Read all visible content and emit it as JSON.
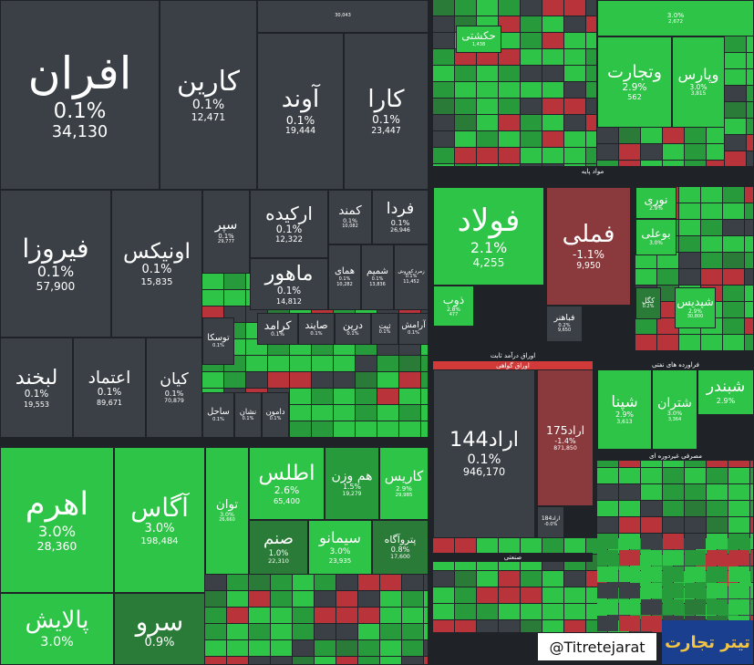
{
  "tiles": [
    {
      "name": "افران",
      "change": "0.1%",
      "value": "34,130",
      "color": "#3b4046"
    },
    {
      "name": "کارین",
      "change": "0.1%",
      "value": "12,471",
      "color": "#3b4046"
    },
    {
      "value": "30,043",
      "color": "#3b4046"
    },
    {
      "name": "آوند",
      "change": "0.1%",
      "value": "19,444",
      "color": "#3b4046"
    },
    {
      "name": "کارا",
      "change": "0.1%",
      "value": "23,447",
      "color": "#3b4046"
    },
    {
      "name": "فیروزا",
      "change": "0.1%",
      "value": "57,900",
      "color": "#3b4046"
    },
    {
      "name": "اونیکس",
      "change": "0.1%",
      "value": "15,835",
      "color": "#3b4046"
    },
    {
      "name": "سپر",
      "change": "0.1%",
      "value": "29,777",
      "color": "#3b4046"
    },
    {
      "name": "ارکیده",
      "change": "0.1%",
      "value": "12,322",
      "color": "#3b4046"
    },
    {
      "name": "کمند",
      "change": "0.1%",
      "value": "10,082",
      "color": "#3b4046"
    },
    {
      "name": "فردا",
      "change": "0.1%",
      "value": "26,946",
      "color": "#3b4046"
    },
    {
      "name": "ماهور",
      "change": "0.1%",
      "value": "14,812",
      "color": "#3b4046"
    },
    {
      "name": "همای",
      "change": "0.1%",
      "value": "10,282",
      "color": "#3b4046"
    },
    {
      "name": "شمیم",
      "change": "0.1%",
      "value": "13,836",
      "color": "#3b4046"
    },
    {
      "name": "زمرد کوروش",
      "change": "0.1%",
      "value": "11,452",
      "color": "#3b4046"
    },
    {
      "name": "لبخند",
      "change": "0.1%",
      "value": "19,553",
      "color": "#3b4046"
    },
    {
      "name": "اعتماد",
      "change": "0.1%",
      "value": "89,671",
      "color": "#3b4046"
    },
    {
      "name": "کیان",
      "change": "0.1%",
      "value": "70,879",
      "color": "#3b4046"
    },
    {
      "name": "توسکا",
      "change": "0.1%",
      "color": "#3b4046"
    },
    {
      "name": "کرامد",
      "change": "0.1%",
      "color": "#3b4046"
    },
    {
      "name": "صایند",
      "change": "0.1%",
      "color": "#3b4046"
    },
    {
      "name": "درین",
      "change": "0.1%",
      "color": "#3b4046"
    },
    {
      "name": "ثبت",
      "change": "0.1%",
      "color": "#3b4046"
    },
    {
      "name": "آرامش",
      "change": "0.1%",
      "color": "#3b4046"
    },
    {
      "name": "ساحل",
      "change": "0.1%",
      "color": "#3b4046"
    },
    {
      "name": "نشان",
      "change": "0.1%",
      "color": "#3b4046"
    },
    {
      "name": "دامون",
      "change": "0.1%",
      "color": "#3b4046"
    },
    {
      "name": "اهرم",
      "change": "3.0%",
      "value": "28,360",
      "color": "#2ec447"
    },
    {
      "name": "آگاس",
      "change": "3.0%",
      "value": "198,484",
      "color": "#2ec447"
    },
    {
      "name": "توان",
      "change": "3.0%",
      "value": "26,660",
      "color": "#2ec447"
    },
    {
      "name": "اطلس",
      "change": "2.6%",
      "value": "65,400",
      "color": "#2ec447"
    },
    {
      "name": "هم وزن",
      "change": "1.5%",
      "value": "19,279",
      "color": "#279a3b"
    },
    {
      "name": "کاریس",
      "change": "2.9%",
      "value": "29,985",
      "color": "#2ec447"
    },
    {
      "name": "صنم",
      "change": "1.0%",
      "value": "22,310",
      "color": "#2a7a38"
    },
    {
      "name": "سیمانو",
      "change": "3.0%",
      "value": "23,935",
      "color": "#2ec447"
    },
    {
      "name": "پتروآگاه",
      "change": "0.8%",
      "value": "17,600",
      "color": "#2a7a38"
    },
    {
      "name": "پالایش",
      "change": "3.0%",
      "color": "#2ec447"
    },
    {
      "name": "سرو",
      "change": "0.9%",
      "color": "#2a7a38"
    },
    {
      "change": "3.0%",
      "value": "2,672",
      "color": "#2ec447"
    },
    {
      "name": "حکشتی",
      "value": "1,438",
      "color": "#2ec447"
    },
    {
      "name": "وتجارت",
      "change": "2.9%",
      "value": "562",
      "color": "#2ec447"
    },
    {
      "name": "وپارس",
      "change": "3.0%",
      "value": "3,815",
      "color": "#2ec447"
    },
    {
      "name": "فولاد",
      "change": "2.1%",
      "value": "4,255",
      "color": "#2ec447"
    },
    {
      "name": "فملی",
      "change": "-1.1%",
      "value": "9,950",
      "color": "#8a3a3d"
    },
    {
      "name": "ذوب",
      "change": "2.8%",
      "value": "477",
      "color": "#2ec447"
    },
    {
      "name": "فباهنر",
      "change": "0.2%",
      "value": "9,650",
      "color": "#3b4046"
    },
    {
      "name": "نوری",
      "change": "2.9%",
      "color": "#2ec447"
    },
    {
      "name": "بوعلی",
      "change": "3.0%",
      "color": "#2ec447"
    },
    {
      "name": "کگل",
      "change": "0.2%",
      "color": "#2a7a38"
    },
    {
      "name": "شپدیس",
      "change": "2.9%",
      "value": "30,800",
      "color": "#2ec447"
    },
    {
      "name": "اراد144",
      "change": "0.1%",
      "value": "946,170",
      "color": "#3b4046"
    },
    {
      "name": "اراد175",
      "change": "-1.4%",
      "value": "871,850",
      "color": "#8a3a3d"
    },
    {
      "name": "اراد184",
      "change": "-0.0%",
      "color": "#3b4046"
    },
    {
      "name": "شپنا",
      "change": "2.9%",
      "value": "3,613",
      "color": "#2ec447"
    },
    {
      "name": "شتران",
      "change": "3.0%",
      "value": "3,364",
      "color": "#2ec447"
    },
    {
      "name": "شبندر",
      "change": "2.9%",
      "color": "#2ec447"
    }
  ],
  "headers": [
    {
      "label": "مواد پایه"
    },
    {
      "label": "اوراق درآمد ثابت"
    },
    {
      "label": "اوراق گواهی"
    },
    {
      "label": "فراورده های نفتی"
    },
    {
      "label": "مصرفی غیردوره ای"
    },
    {
      "label": "صنعتی"
    }
  ],
  "watermark": {
    "handle": "@Titretejarat",
    "logo": "تیتر تجارت"
  }
}
